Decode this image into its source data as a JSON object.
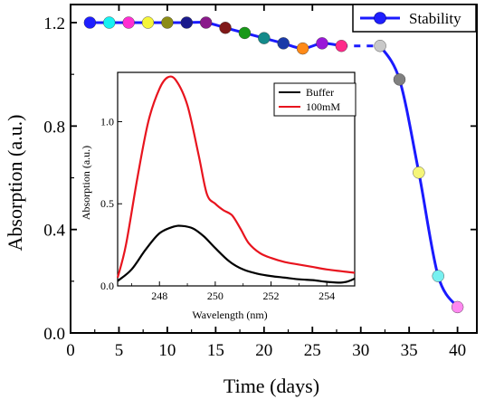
{
  "chart_data": [
    {
      "type": "scatter",
      "title": "",
      "xlabel": "Time (days)",
      "ylabel": "Absorption (a.u.)",
      "xlim": [
        0,
        42
      ],
      "ylim": [
        0.0,
        1.27
      ],
      "xticks": [
        "0",
        "5",
        "10",
        "15",
        "20",
        "25",
        "30",
        "35",
        "40"
      ],
      "yticks": [
        "0.0",
        "0.4",
        "0.8",
        "1.2"
      ],
      "grid": false,
      "legend_position": "top-right",
      "series": [
        {
          "name": "Stability",
          "line_color": "#1a1aff",
          "points": [
            {
              "x": 2,
              "y": 1.2,
              "color": "#1e1eff"
            },
            {
              "x": 4,
              "y": 1.2,
              "color": "#17f2f2"
            },
            {
              "x": 6,
              "y": 1.2,
              "color": "#ff2fd2"
            },
            {
              "x": 8,
              "y": 1.2,
              "color": "#f5f53a"
            },
            {
              "x": 10,
              "y": 1.2,
              "color": "#8c8c16"
            },
            {
              "x": 12,
              "y": 1.2,
              "color": "#1a1a8c"
            },
            {
              "x": 14,
              "y": 1.2,
              "color": "#8a1a8a"
            },
            {
              "x": 16,
              "y": 1.18,
              "color": "#801818"
            },
            {
              "x": 18,
              "y": 1.16,
              "color": "#189818"
            },
            {
              "x": 20,
              "y": 1.14,
              "color": "#148a8a"
            },
            {
              "x": 22,
              "y": 1.12,
              "color": "#1a3aa8"
            },
            {
              "x": 24,
              "y": 1.1,
              "color": "#ff8a18"
            },
            {
              "x": 26,
              "y": 1.12,
              "color": "#9a18d8"
            },
            {
              "x": 28,
              "y": 1.11,
              "color": "#ff2a8a"
            },
            {
              "x": 32,
              "y": 1.11,
              "color": "#c8c8c8"
            },
            {
              "x": 34,
              "y": 0.98,
              "color": "#808080"
            },
            {
              "x": 36,
              "y": 0.62,
              "color": "#f5f578"
            },
            {
              "x": 38,
              "y": 0.22,
              "color": "#78f0f0"
            },
            {
              "x": 40,
              "y": 0.1,
              "color": "#ff88f0"
            }
          ]
        }
      ]
    },
    {
      "type": "line",
      "title": "",
      "xlabel": "Wavelength (nm)",
      "ylabel": "Absorption (a.u.)",
      "xlim": [
        246.5,
        255.0
      ],
      "ylim": [
        0.0,
        1.3
      ],
      "xticks": [
        "248",
        "250",
        "252",
        "254"
      ],
      "yticks": [
        "0.0",
        "0.5",
        "1.0"
      ],
      "legend_position": "top-right",
      "series": [
        {
          "name": "Buffer",
          "color": "#000000",
          "x": [
            246.5,
            247.0,
            247.5,
            248.0,
            248.5,
            248.8,
            249.2,
            249.6,
            250.0,
            250.5,
            251.0,
            251.5,
            252.0,
            252.5,
            253.0,
            253.5,
            254.0,
            254.5,
            254.8,
            255.0
          ],
          "y": [
            0.03,
            0.1,
            0.22,
            0.32,
            0.36,
            0.365,
            0.35,
            0.3,
            0.23,
            0.15,
            0.1,
            0.075,
            0.06,
            0.05,
            0.04,
            0.035,
            0.025,
            0.02,
            0.03,
            0.045
          ]
        },
        {
          "name": "100mM",
          "color": "#e8141e",
          "x": [
            246.5,
            246.8,
            247.2,
            247.6,
            248.0,
            248.3,
            248.6,
            249.0,
            249.4,
            249.7,
            250.0,
            250.3,
            250.6,
            250.9,
            251.2,
            251.6,
            252.0,
            252.5,
            253.0,
            253.5,
            254.0,
            254.5,
            255.0
          ],
          "y": [
            0.05,
            0.25,
            0.65,
            1.0,
            1.2,
            1.27,
            1.25,
            1.1,
            0.8,
            0.56,
            0.5,
            0.46,
            0.43,
            0.35,
            0.26,
            0.2,
            0.17,
            0.145,
            0.13,
            0.115,
            0.1,
            0.09,
            0.08
          ]
        }
      ]
    }
  ]
}
